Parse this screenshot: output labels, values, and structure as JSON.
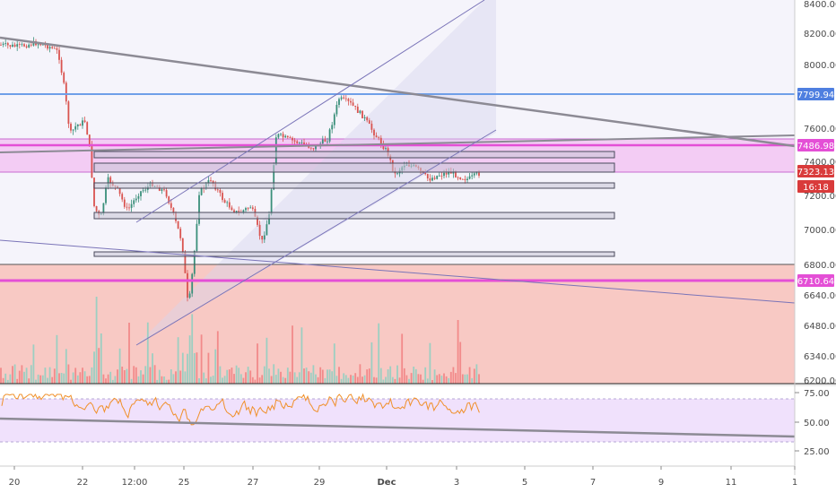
{
  "colors": {
    "background": "#ffffff",
    "upper_band": "#ecebf8",
    "lower_zone": "#f8c9c4",
    "resistance_band": "#f2c4f2",
    "trendline": "#8c8a94",
    "channel": "#7a74b8",
    "blue_level": "#6f9fe8",
    "magenta": "#e44fd6",
    "candle_up": "#3a8f7a",
    "candle_down": "#d9534f",
    "volume_up": "#9ccfc2",
    "volume_down": "#f28a8a",
    "rsi_line": "#f0902a",
    "rsi_band": "#eddcfb"
  },
  "price_axis": {
    "ticks": [
      "8400.00",
      "8200.00",
      "8000.00",
      "7600.00",
      "7400.00",
      "7200.00",
      "7000.00",
      "6800.00",
      "6640.00",
      "6480.00",
      "6340.00",
      "6200.00"
    ]
  },
  "rsi_axis": {
    "ticks": [
      "75.00",
      "50.00",
      "25.00"
    ]
  },
  "time_axis": {
    "ticks": [
      "20",
      "22",
      "12:00",
      "25",
      "27",
      "29",
      "Dec",
      "3",
      "5",
      "7",
      "9",
      "11",
      "1"
    ]
  },
  "price_badges": [
    {
      "label": "7799.94",
      "color": "#4f7fe0",
      "text_color": "#ffffff"
    },
    {
      "label": "7486.98",
      "color": "#e44fd6",
      "text_color": "#ffffff"
    },
    {
      "label": "7323.13",
      "color": "#d93b3b",
      "text_color": "#ffffff"
    },
    {
      "label": "16:18",
      "color": "#d93b3b",
      "text_color": "#ffffff"
    },
    {
      "label": "6710.64",
      "color": "#e44fd6",
      "text_color": "#ffffff"
    }
  ]
}
